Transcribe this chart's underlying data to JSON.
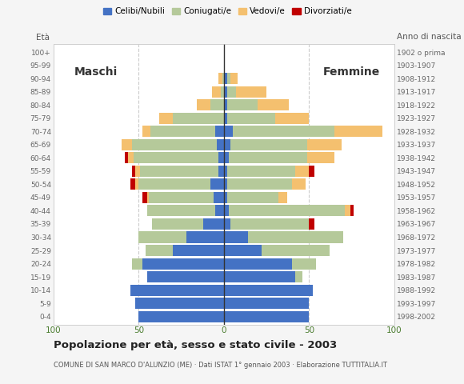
{
  "age_groups": [
    "0-4",
    "5-9",
    "10-14",
    "15-19",
    "20-24",
    "25-29",
    "30-34",
    "35-39",
    "40-44",
    "45-49",
    "50-54",
    "55-59",
    "60-64",
    "65-69",
    "70-74",
    "75-79",
    "80-84",
    "85-89",
    "90-94",
    "95-99",
    "100+"
  ],
  "birth_years": [
    "1998-2002",
    "1993-1997",
    "1988-1992",
    "1983-1987",
    "1978-1982",
    "1973-1977",
    "1968-1972",
    "1963-1967",
    "1958-1962",
    "1953-1957",
    "1948-1952",
    "1943-1947",
    "1938-1942",
    "1933-1937",
    "1928-1932",
    "1923-1927",
    "1918-1922",
    "1913-1917",
    "1908-1912",
    "1903-1907",
    "1902 o prima"
  ],
  "male_celibi": [
    50,
    52,
    55,
    45,
    48,
    30,
    22,
    12,
    5,
    6,
    8,
    3,
    3,
    4,
    5,
    0,
    0,
    0,
    0,
    0,
    0
  ],
  "male_coniugati": [
    0,
    0,
    0,
    0,
    6,
    16,
    28,
    30,
    40,
    38,
    42,
    46,
    50,
    50,
    38,
    30,
    8,
    2,
    1,
    0,
    0
  ],
  "male_vedovi": [
    0,
    0,
    0,
    0,
    0,
    0,
    0,
    0,
    0,
    1,
    2,
    3,
    3,
    6,
    5,
    8,
    8,
    5,
    2,
    0,
    0
  ],
  "male_divorziati": [
    0,
    0,
    0,
    0,
    0,
    0,
    0,
    0,
    0,
    3,
    3,
    2,
    2,
    0,
    0,
    0,
    0,
    0,
    0,
    0,
    0
  ],
  "female_celibi": [
    50,
    50,
    52,
    42,
    40,
    22,
    14,
    4,
    3,
    2,
    2,
    2,
    3,
    4,
    5,
    2,
    2,
    2,
    2,
    0,
    0
  ],
  "female_coniugati": [
    0,
    0,
    0,
    4,
    14,
    40,
    56,
    46,
    68,
    30,
    38,
    40,
    46,
    45,
    60,
    28,
    18,
    5,
    2,
    0,
    0
  ],
  "female_vedovi": [
    0,
    0,
    0,
    0,
    0,
    0,
    0,
    0,
    3,
    5,
    8,
    8,
    16,
    20,
    28,
    20,
    18,
    18,
    4,
    0,
    0
  ],
  "female_divorziati": [
    0,
    0,
    0,
    0,
    0,
    0,
    0,
    3,
    2,
    0,
    0,
    3,
    0,
    0,
    0,
    0,
    0,
    0,
    0,
    0,
    0
  ],
  "color_celibi": "#4472c4",
  "color_coniugati": "#b5c99a",
  "color_vedovi": "#f4c06f",
  "color_divorziati": "#c00000",
  "title": "Popolazione per età, sesso e stato civile - 2003",
  "subtitle": "COMUNE DI SAN MARCO D'ALUNZIO (ME) · Dati ISTAT 1° gennaio 2003 · Elaborazione TUTTITALIA.IT",
  "label_maschi": "Maschi",
  "label_femmine": "Femmine",
  "label_eta": "Età",
  "label_anno": "Anno di nascita",
  "xlim": 100,
  "bg_color": "#f5f5f5",
  "plot_bg": "#ffffff"
}
